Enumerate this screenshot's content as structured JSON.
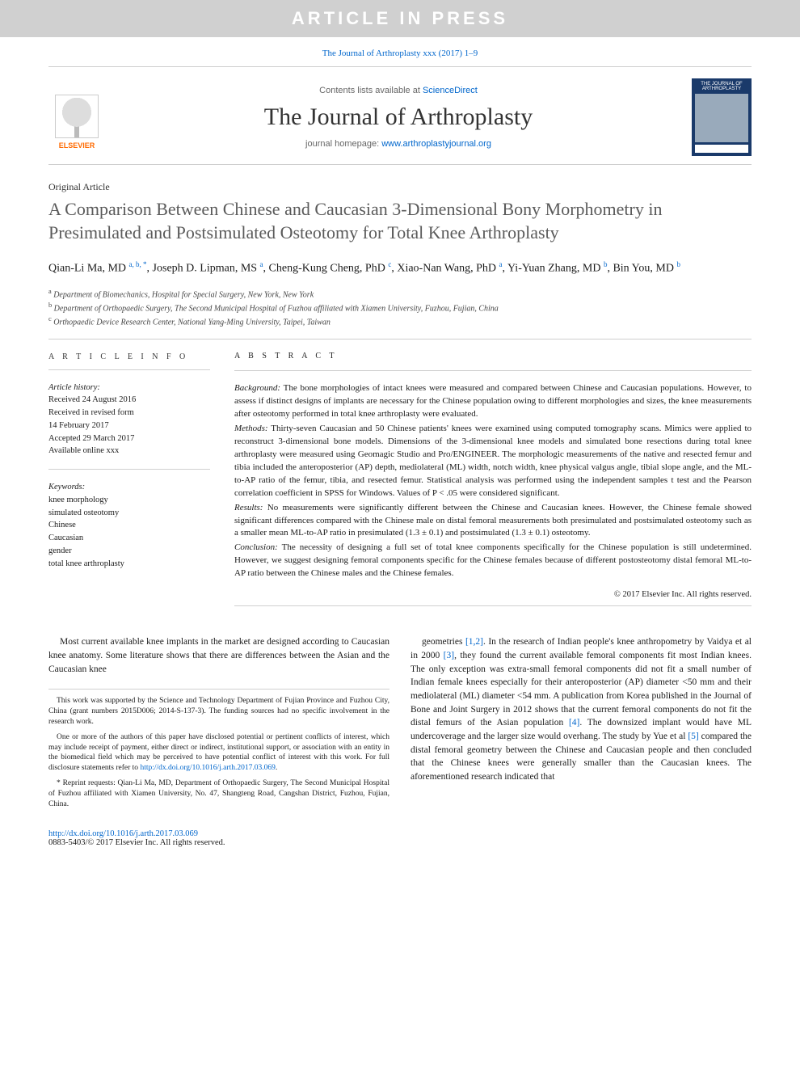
{
  "banner": "ARTICLE IN PRESS",
  "header_citation": "The Journal of Arthroplasty xxx (2017) 1–9",
  "masthead": {
    "contents_prefix": "Contents lists available at ",
    "contents_link": "ScienceDirect",
    "journal_name": "The Journal of Arthroplasty",
    "homepage_prefix": "journal homepage: ",
    "homepage_link": "www.arthroplastyjournal.org",
    "elsevier_label": "ELSEVIER",
    "cover_label": "THE JOURNAL OF ARTHROPLASTY"
  },
  "article_type": "Original Article",
  "title": "A Comparison Between Chinese and Caucasian 3-Dimensional Bony Morphometry in Presimulated and Postsimulated Osteotomy for Total Knee Arthroplasty",
  "authors_html": "Qian-Li Ma, MD <sup>a, b, *</sup>, Joseph D. Lipman, MS <sup>a</sup>, Cheng-Kung Cheng, PhD <sup>c</sup>, Xiao-Nan Wang, PhD <sup>a</sup>, Yi-Yuan Zhang, MD <sup>b</sup>, Bin You, MD <sup>b</sup>",
  "affiliations": {
    "a": "Department of Biomechanics, Hospital for Special Surgery, New York, New York",
    "b": "Department of Orthopaedic Surgery, The Second Municipal Hospital of Fuzhou affiliated with Xiamen University, Fuzhou, Fujian, China",
    "c": "Orthopaedic Device Research Center, National Yang-Ming University, Taipei, Taiwan"
  },
  "info": {
    "head": "A R T I C L E  I N F O",
    "history_label": "Article history:",
    "history": [
      "Received 24 August 2016",
      "Received in revised form",
      "14 February 2017",
      "Accepted 29 March 2017",
      "Available online xxx"
    ],
    "keywords_label": "Keywords:",
    "keywords": [
      "knee morphology",
      "simulated osteotomy",
      "Chinese",
      "Caucasian",
      "gender",
      "total knee arthroplasty"
    ]
  },
  "abstract": {
    "head": "A B S T R A C T",
    "background_label": "Background:",
    "background": "The bone morphologies of intact knees were measured and compared between Chinese and Caucasian populations. However, to assess if distinct designs of implants are necessary for the Chinese population owing to different morphologies and sizes, the knee measurements after osteotomy performed in total knee arthroplasty were evaluated.",
    "methods_label": "Methods:",
    "methods": "Thirty-seven Caucasian and 50 Chinese patients' knees were examined using computed tomography scans. Mimics were applied to reconstruct 3-dimensional bone models. Dimensions of the 3-dimensional knee models and simulated bone resections during total knee arthroplasty were measured using Geomagic Studio and Pro/ENGINEER. The morphologic measurements of the native and resected femur and tibia included the anteroposterior (AP) depth, mediolateral (ML) width, notch width, knee physical valgus angle, tibial slope angle, and the ML-to-AP ratio of the femur, tibia, and resected femur. Statistical analysis was performed using the independent samples t test and the Pearson correlation coefficient in SPSS for Windows. Values of P < .05 were considered significant.",
    "results_label": "Results:",
    "results": "No measurements were significantly different between the Chinese and Caucasian knees. However, the Chinese female showed significant differences compared with the Chinese male on distal femoral measurements both presimulated and postsimulated osteotomy such as a smaller mean ML-to-AP ratio in presimulated (1.3 ± 0.1) and postsimulated (1.3 ± 0.1) osteotomy.",
    "conclusion_label": "Conclusion:",
    "conclusion": "The necessity of designing a full set of total knee components specifically for the Chinese population is still undetermined. However, we suggest designing femoral components specific for the Chinese females because of different postosteotomy distal femoral ML-to-AP ratio between the Chinese males and the Chinese females.",
    "copyright": "© 2017 Elsevier Inc. All rights reserved."
  },
  "body": {
    "col1_p1": "Most current available knee implants in the market are designed according to Caucasian knee anatomy. Some literature shows that there are differences between the Asian and the Caucasian knee",
    "col2_p1_a": "geometries ",
    "col2_ref12": "[1,2]",
    "col2_p1_b": ". In the research of Indian people's knee anthropometry by Vaidya et al in 2000 ",
    "col2_ref3": "[3]",
    "col2_p1_c": ", they found the current available femoral components fit most Indian knees. The only exception was extra-small femoral components did not fit a small number of Indian female knees especially for their anteroposterior (AP) diameter <50 mm and their mediolateral (ML) diameter <54 mm. A publication from Korea published in the Journal of Bone and Joint Surgery in 2012 shows that the current femoral components do not fit the distal femurs of the Asian population ",
    "col2_ref4": "[4]",
    "col2_p1_d": ". The downsized implant would have ML undercoverage and the larger size would overhang. The study by Yue et al ",
    "col2_ref5": "[5]",
    "col2_p1_e": " compared the distal femoral geometry between the Chinese and Caucasian people and then concluded that the Chinese knees were generally smaller than the Caucasian knees. The aforementioned research indicated that"
  },
  "footnotes": {
    "funding": "This work was supported by the Science and Technology Department of Fujian Province and Fuzhou City, China (grant numbers 2015D006; 2014-S-137-3). The funding sources had no specific involvement in the research work.",
    "coi_a": "One or more of the authors of this paper have disclosed potential or pertinent conflicts of interest, which may include receipt of payment, either direct or indirect, institutional support, or association with an entity in the biomedical field which may be perceived to have potential conflict of interest with this work. For full disclosure statements refer to ",
    "coi_link": "http://dx.doi.org/10.1016/j.arth.2017.03.069",
    "coi_b": ".",
    "reprint": "* Reprint requests: Qian-Li Ma, MD, Department of Orthopaedic Surgery, The Second Municipal Hospital of Fuzhou affiliated with Xiamen University, No. 47, Shangteng Road, Cangshan District, Fuzhou, Fujian, China."
  },
  "doi": {
    "link": "http://dx.doi.org/10.1016/j.arth.2017.03.069",
    "issn": "0883-5403/© 2017 Elsevier Inc. All rights reserved."
  },
  "colors": {
    "link": "#0066cc",
    "banner_bg": "#d0d0d0",
    "elsevier": "#ff6a00",
    "rule": "#cfcfcf"
  }
}
